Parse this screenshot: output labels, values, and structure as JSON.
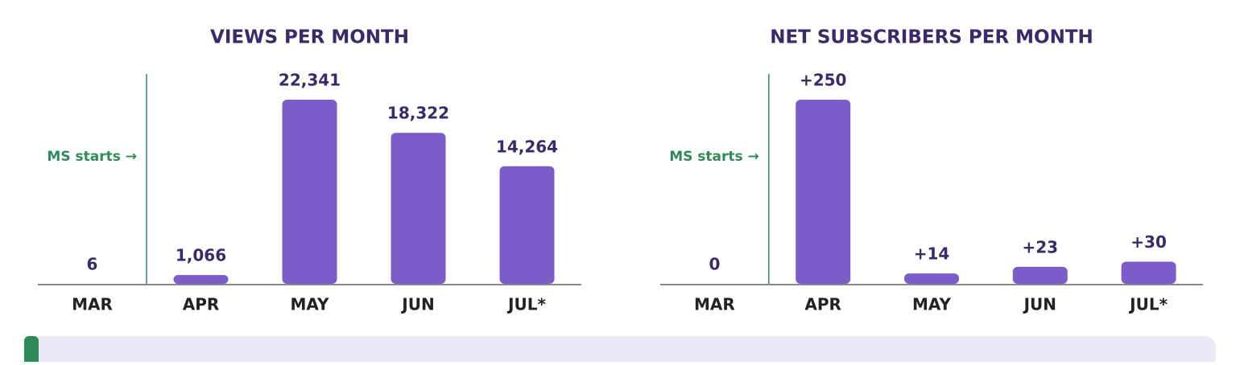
{
  "chart_data": [
    {
      "type": "bar",
      "title": "VIEWS PER MONTH",
      "categories": [
        "MAR",
        "APR",
        "MAY",
        "JUN",
        "JUL*"
      ],
      "values": [
        6,
        1066,
        22341,
        18322,
        14264
      ],
      "value_labels": [
        "6",
        "1,066",
        "22,341",
        "18,322",
        "14,264"
      ],
      "colors": [
        "#b3adbb",
        "#7b5cc8",
        "#7b5cc8",
        "#7b5cc8",
        "#7b5cc8"
      ],
      "ylim": [
        0,
        22341
      ],
      "annotation": "MS starts →"
    },
    {
      "type": "bar",
      "title": "NET SUBSCRIBERS PER MONTH",
      "categories": [
        "MAR",
        "APR",
        "MAY",
        "JUN",
        "JUL*"
      ],
      "values": [
        0,
        250,
        14,
        23,
        30
      ],
      "value_labels": [
        "0",
        "+250",
        "+14",
        "+23",
        "+30"
      ],
      "colors": [
        "#b3adbb",
        "#7b5cc8",
        "#7b5cc8",
        "#7b5cc8",
        "#7b5cc8"
      ],
      "ylim": [
        0,
        250
      ],
      "annotation": "MS starts →"
    }
  ]
}
